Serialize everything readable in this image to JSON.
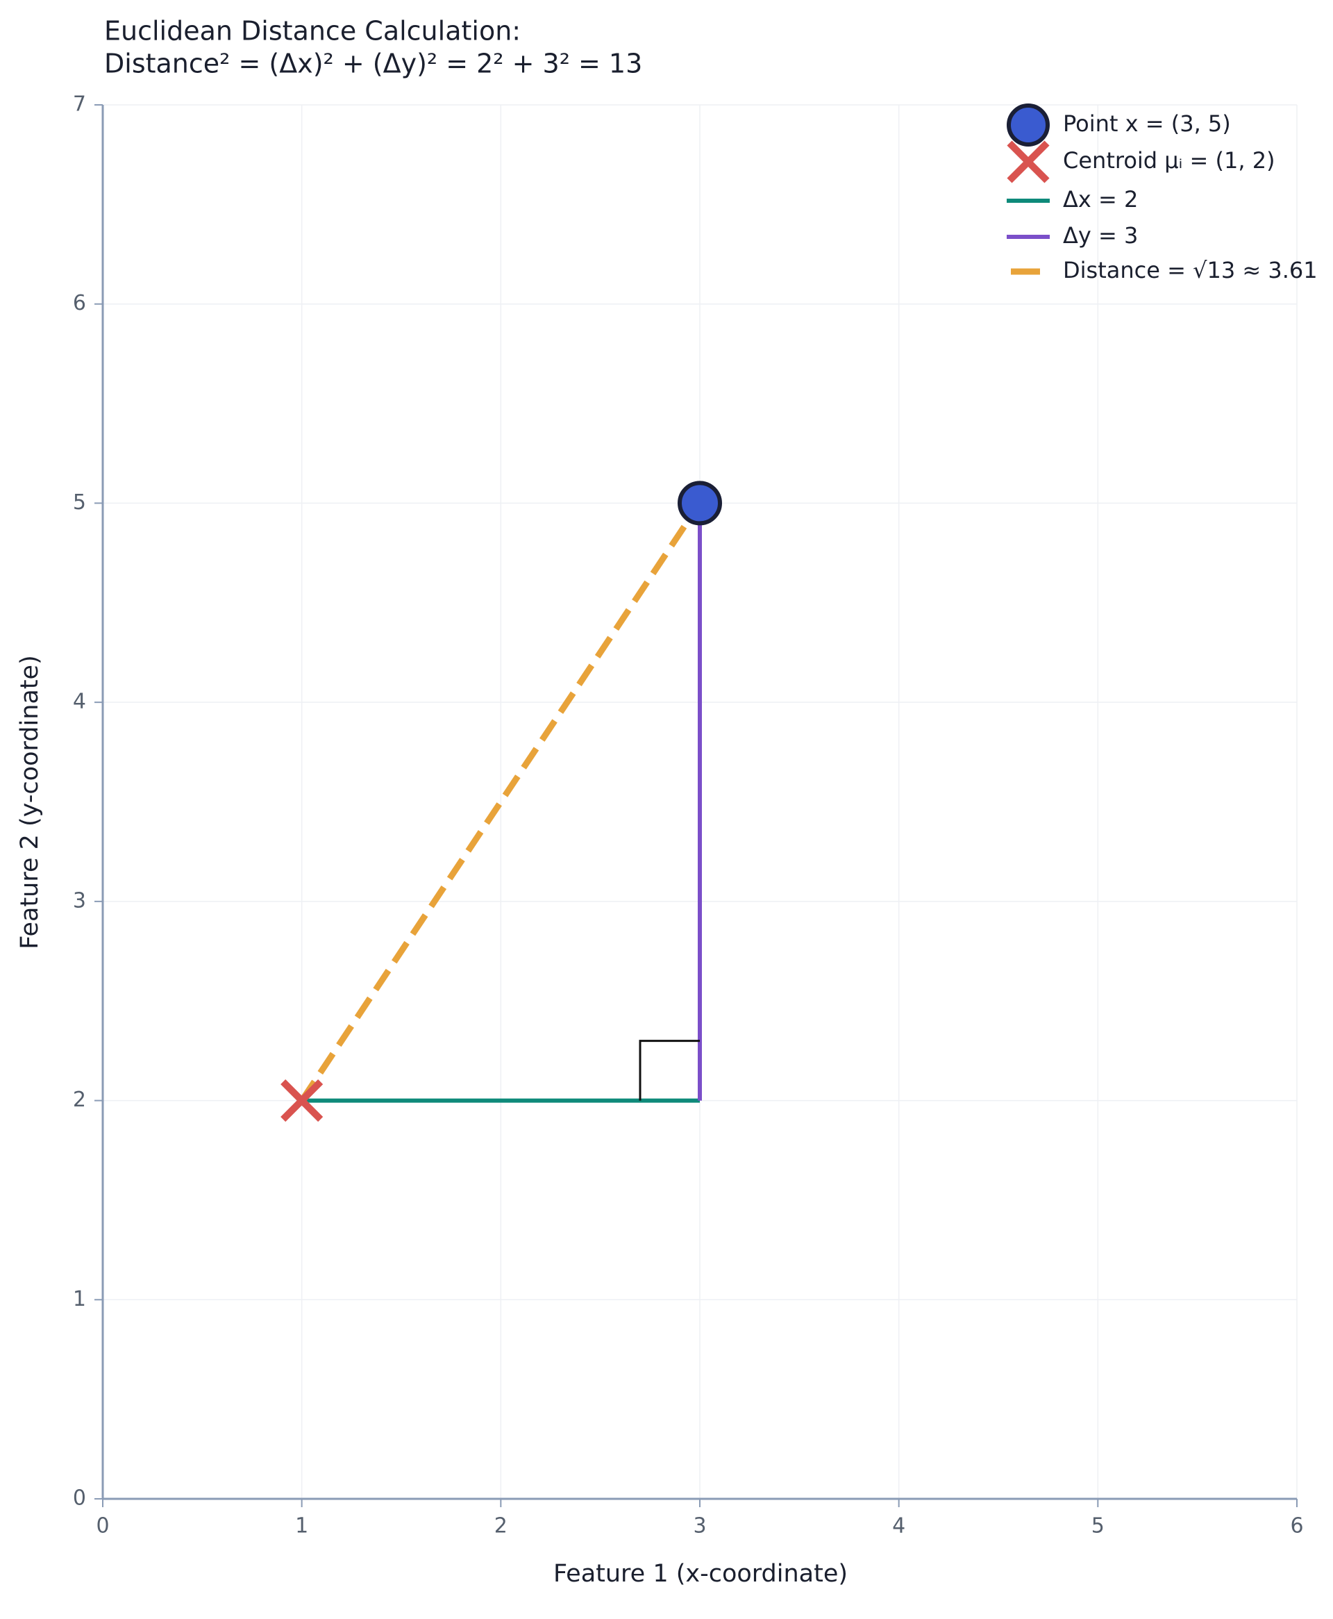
{
  "chart_data": {
    "type": "scatter",
    "title": [
      "Euclidean Distance Calculation:",
      "Distance² = (Δx)² + (Δy)² = 2² + 3² = 13"
    ],
    "x_label": "Feature 1 (x-coordinate)",
    "y_label": "Feature 2 (y-coordinate)",
    "xlim": [
      0,
      6
    ],
    "xticks": [
      0,
      1,
      2,
      3,
      4,
      5,
      6
    ],
    "ylim": [
      0,
      7
    ],
    "yticks": [
      0,
      1,
      2,
      3,
      4,
      5,
      6,
      7
    ],
    "grid": true,
    "legend": "upper right",
    "series": [
      {
        "name": "Distance = √13 ≈ 3.61",
        "color": "#e8a33a",
        "marker": "line",
        "line_style": "dashed",
        "x": [
          1,
          3
        ],
        "values": [
          2,
          5
        ]
      },
      {
        "name": "Δx = 2",
        "color": "#0e8a7a",
        "marker": "line",
        "line_style": "solid",
        "x": [
          1,
          3
        ],
        "values": [
          2,
          2
        ]
      },
      {
        "name": "Δy = 3",
        "color": "#7b4fc9",
        "marker": "line",
        "line_style": "solid",
        "x": [
          3,
          3
        ],
        "values": [
          2,
          5
        ]
      },
      {
        "name": "Point x = (3, 5)",
        "color": "#3a5bd0",
        "marker": "circle",
        "x": [
          3
        ],
        "values": [
          5
        ]
      },
      {
        "name": "Centroid μᵢ = (1, 2)",
        "color": "#d9534f",
        "marker": "cross",
        "x": [
          1
        ],
        "values": [
          2
        ]
      }
    ],
    "legend_order": [
      3,
      4,
      1,
      2,
      0
    ]
  }
}
